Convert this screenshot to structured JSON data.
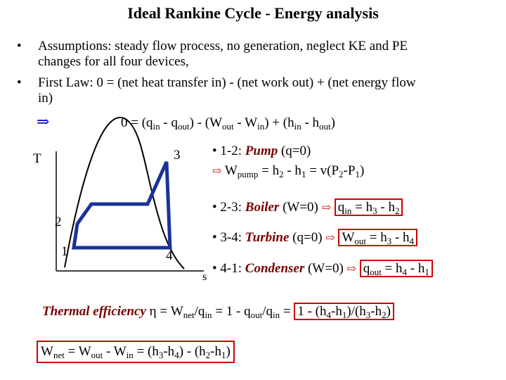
{
  "title": "Ideal Rankine Cycle - Energy analysis",
  "bullets": [
    {
      "dot": "•",
      "line1": "Assumptions: steady flow process, no generation, neglect KE and PE",
      "line2": "changes for all four devices,"
    },
    {
      "dot": "•",
      "line1": "First Law: 0 = (net heat transfer in) - (net work out) + (net energy flow",
      "line2": "in)"
    }
  ],
  "implies_symbol": "⇒",
  "energy_eq": {
    "lhs": "0 = (q",
    "sub_in": "in",
    "minus_q": " - q",
    "sub_out": "out",
    "mid": ") - (W",
    "sub_out2": "out",
    "minus_w": " - W",
    "sub_in2": "in",
    "plus_h": ") + (h",
    "sub_in3": "in",
    "minus_h": " - h",
    "sub_out3": "out",
    "end": ")"
  },
  "diagram": {
    "axis_t": "T",
    "axis_s": "s",
    "state_1": "1",
    "state_2": "2",
    "state_3": "3",
    "state_4": "4",
    "cycle_color": "#1a3399",
    "dome_color": "#000000"
  },
  "processes": {
    "p12": {
      "dot": "•",
      "range": "1-2: ",
      "name": "Pump",
      "cond": " (q=0)",
      "arrow": "⇨",
      "w": "W",
      "w_sub": "pump",
      "eq_a": " = h",
      "s2": "2",
      "eq_b": " - h",
      "s1": "1",
      "eq_c": " = v(P",
      "sp2": "2",
      "eq_d": "-P",
      "sp1": "1",
      "eq_e": ")"
    },
    "p23": {
      "dot": "•",
      "range": "2-3: ",
      "name": "Boiler",
      "cond": " (W=0)",
      "arrow": "⇨",
      "q": "q",
      "q_sub": "in",
      "eq_a": " = h",
      "s3": "3",
      "eq_b": " - h",
      "s2": "2"
    },
    "p34": {
      "dot": "•",
      "range": "3-4: ",
      "name": "Turbine",
      "cond": " (q=0)",
      "arrow": "⇨",
      "w": "W",
      "w_sub": "out",
      "eq_a": " = h",
      "s3": "3",
      "eq_b": " - h",
      "s4": "4"
    },
    "p41": {
      "dot": "•",
      "range": "4-1: ",
      "name": "Condenser",
      "cond": " (W=0)",
      "arrow": "⇨",
      "q": "q",
      "q_sub": "out",
      "eq_a": " = h",
      "s4": "4",
      "eq_b": " - h",
      "s1": "1"
    }
  },
  "efficiency": {
    "label": "Thermal efficiency",
    "eta": " η",
    "a": " = W",
    "a_sub": "net",
    "b": "/q",
    "b_sub": "in",
    "c": " = 1 - q",
    "c_sub": "out",
    "d": "/q",
    "d_sub": "in",
    "e": " = ",
    "box": "1 - (h",
    "box_s4": "4",
    "box_b": "-h",
    "box_s1": "1",
    "box_c": ")/(h",
    "box_s3": "3",
    "box_d": "-h",
    "box_s2": "2",
    "box_e": ")"
  },
  "wnet": {
    "w": "W",
    "w_sub": "net",
    "a": " = W",
    "a_sub": "out",
    "b": " - W",
    "b_sub": "in",
    "c": " = (h",
    "s3": "3",
    "d": "-h",
    "s4": "4",
    "e": ") - (h",
    "s2": "2",
    "f": "-h",
    "s1": "1",
    "g": ")"
  }
}
